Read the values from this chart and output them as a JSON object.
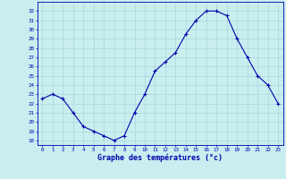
{
  "hours": [
    0,
    1,
    2,
    3,
    4,
    5,
    6,
    7,
    8,
    9,
    10,
    11,
    12,
    13,
    14,
    15,
    16,
    17,
    18,
    19,
    20,
    21,
    22,
    23
  ],
  "temperatures": [
    22.5,
    23.0,
    22.5,
    21.0,
    19.5,
    19.0,
    18.5,
    18.0,
    18.5,
    21.0,
    23.0,
    25.5,
    26.5,
    27.5,
    29.5,
    31.0,
    32.0,
    32.0,
    31.5,
    29.0,
    27.0,
    25.0,
    24.0,
    22.0
  ],
  "xlabel": "Graphe des températures (°c)",
  "ylim": [
    17.5,
    33.0
  ],
  "xlim": [
    -0.5,
    23.5
  ],
  "yticks": [
    18,
    19,
    20,
    21,
    22,
    23,
    24,
    25,
    26,
    27,
    28,
    29,
    30,
    31,
    32
  ],
  "xticks": [
    0,
    1,
    2,
    3,
    4,
    5,
    6,
    7,
    8,
    9,
    10,
    11,
    12,
    13,
    14,
    15,
    16,
    17,
    18,
    19,
    20,
    21,
    22,
    23
  ],
  "line_color": "#0000AA",
  "marker_color": "#0000AA",
  "bg_color": "#C8EEF0",
  "grid_color": "#A8D8DA",
  "xlabel_color": "#0000AA",
  "tick_color": "#0000AA"
}
